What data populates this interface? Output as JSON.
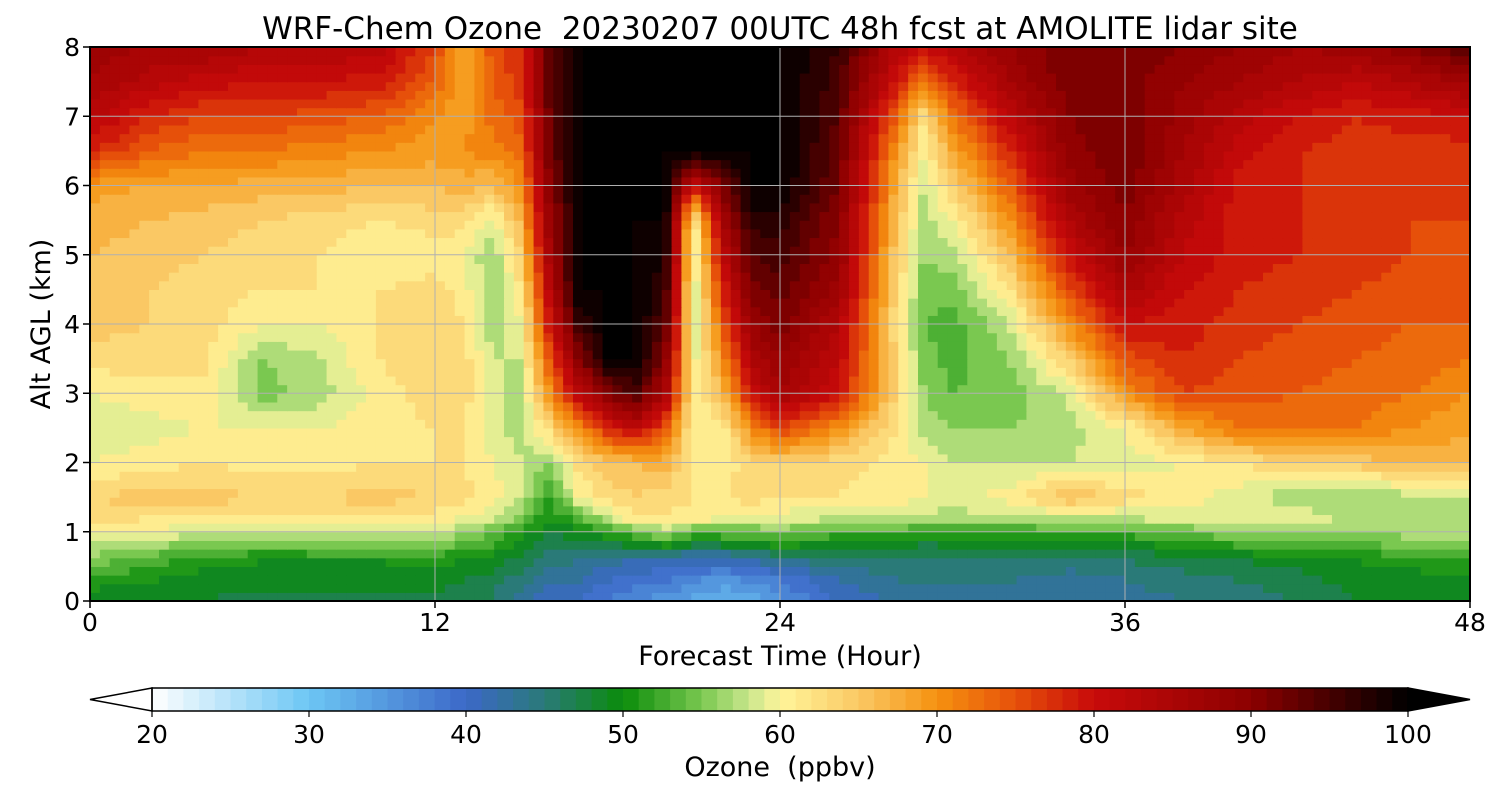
{
  "chart_data": {
    "type": "heatmap",
    "title": "WRF-Chem Ozone  20230207 00UTC 48h fcst at AMOLITE lidar site",
    "xlabel": "Forecast Time (Hour)",
    "ylabel": "Alt AGL (km)",
    "xlim": [
      0,
      48
    ],
    "ylim": [
      0,
      8
    ],
    "x_ticks": [
      0,
      12,
      24,
      36,
      48
    ],
    "y_ticks": [
      0,
      1,
      2,
      3,
      4,
      5,
      6,
      7,
      8
    ],
    "grid": true,
    "z_label": "Ozone  (ppbv)",
    "z_range": [
      20,
      100
    ],
    "colorbar_ticks": [
      20,
      30,
      40,
      50,
      60,
      70,
      80,
      90,
      100
    ],
    "colorbar_extend": "both",
    "colorbar_placement": "bottom",
    "colormap": [
      [
        20,
        "#ffffff"
      ],
      [
        30,
        "#6cc6f4"
      ],
      [
        40,
        "#3c68c8"
      ],
      [
        45,
        "#2a7a78"
      ],
      [
        50,
        "#0a8c0a"
      ],
      [
        55,
        "#7ac850"
      ],
      [
        58,
        "#c8e68c"
      ],
      [
        60,
        "#fff59a"
      ],
      [
        65,
        "#fac864"
      ],
      [
        70,
        "#f5920f"
      ],
      [
        75,
        "#e6500a"
      ],
      [
        80,
        "#c80a0a"
      ],
      [
        90,
        "#8c0000"
      ],
      [
        100,
        "#000000"
      ]
    ],
    "x": [
      0,
      2,
      4,
      6,
      8,
      10,
      12,
      13,
      14,
      15,
      16,
      17,
      18,
      19,
      20,
      21,
      22,
      23,
      24,
      26,
      28,
      29,
      30,
      32,
      34,
      36,
      38,
      40,
      42,
      44,
      46,
      48
    ],
    "y": [
      0,
      0.3,
      0.6,
      0.9,
      1.2,
      1.5,
      2.0,
      2.5,
      3.0,
      3.5,
      4.0,
      4.5,
      5.0,
      5.5,
      6.0,
      6.5,
      7.0,
      7.5,
      8.0
    ],
    "z": [
      [
        47,
        48,
        48,
        47,
        47,
        47,
        47,
        47,
        46,
        42,
        40,
        40,
        38,
        36,
        35,
        33,
        32,
        33,
        35,
        40,
        42,
        42,
        43,
        43,
        42,
        43,
        44,
        45,
        46,
        48,
        48,
        49
      ],
      [
        52,
        50,
        49,
        49,
        49,
        49,
        49,
        48,
        47,
        45,
        42,
        42,
        40,
        39,
        38,
        36,
        35,
        36,
        38,
        42,
        44,
        44,
        44,
        44,
        43,
        44,
        45,
        46,
        47,
        49,
        49,
        50
      ],
      [
        55,
        53,
        51,
        50,
        50,
        50,
        51,
        50,
        49,
        47,
        45,
        44,
        43,
        42,
        41,
        41,
        41,
        42,
        44,
        45,
        45,
        45,
        46,
        46,
        45,
        46,
        47,
        48,
        49,
        50,
        51,
        52
      ],
      [
        59,
        58,
        57,
        56,
        57,
        57,
        56,
        55,
        53,
        50,
        47,
        48,
        49,
        51,
        54,
        50,
        51,
        51,
        53,
        51,
        50,
        49,
        49,
        50,
        50,
        51,
        52,
        54,
        55,
        55,
        56,
        57
      ],
      [
        63,
        62,
        62,
        62,
        62,
        62,
        61,
        60,
        58,
        55,
        50,
        53,
        57,
        62,
        62,
        61,
        60,
        60,
        59,
        58,
        58,
        57,
        57,
        57,
        58,
        58,
        59,
        60,
        60,
        57,
        57,
        56
      ],
      [
        64,
        65,
        65,
        64,
        64,
        65,
        64,
        63,
        61,
        58,
        52,
        60,
        63,
        64,
        63,
        62,
        62,
        63,
        62,
        62,
        61,
        60,
        59,
        61,
        66,
        63,
        61,
        59,
        56,
        56,
        57,
        57
      ],
      [
        60,
        61,
        62,
        61,
        61,
        62,
        62,
        62,
        60,
        58,
        56,
        63,
        65,
        66,
        67,
        61,
        60,
        64,
        64,
        63,
        61,
        60,
        58,
        58,
        58,
        59,
        60,
        62,
        64,
        65,
        66,
        67
      ],
      [
        58,
        59,
        60,
        60,
        60,
        61,
        62,
        62,
        59,
        57,
        63,
        70,
        78,
        82,
        75,
        60,
        61,
        70,
        76,
        70,
        62,
        57,
        56,
        56,
        57,
        60,
        68,
        72,
        72,
        72,
        70,
        68
      ],
      [
        60,
        61,
        62,
        55,
        57,
        61,
        63,
        63,
        59,
        57,
        70,
        82,
        90,
        95,
        85,
        60,
        66,
        80,
        86,
        80,
        64,
        56,
        54,
        55,
        58,
        70,
        76,
        75,
        74,
        73,
        72,
        70
      ],
      [
        63,
        63,
        62,
        56,
        58,
        62,
        64,
        63,
        58,
        58,
        75,
        90,
        100,
        100,
        90,
        59,
        70,
        84,
        88,
        82,
        64,
        55,
        53,
        56,
        64,
        75,
        78,
        76,
        75,
        74,
        73,
        72
      ],
      [
        65,
        64,
        63,
        60,
        60,
        62,
        64,
        62,
        57,
        60,
        80,
        96,
        100,
        100,
        94,
        58,
        74,
        88,
        91,
        84,
        63,
        54,
        53,
        58,
        70,
        80,
        79,
        77,
        76,
        75,
        74,
        74
      ],
      [
        65,
        64,
        63,
        62,
        62,
        62,
        63,
        61,
        56,
        62,
        83,
        100,
        100,
        100,
        96,
        58,
        78,
        91,
        93,
        87,
        64,
        55,
        55,
        62,
        75,
        85,
        80,
        78,
        77,
        76,
        75,
        74
      ],
      [
        66,
        65,
        64,
        63,
        62,
        60,
        61,
        60,
        56,
        64,
        86,
        100,
        100,
        100,
        98,
        59,
        82,
        94,
        95,
        89,
        65,
        56,
        57,
        66,
        80,
        88,
        82,
        79,
        78,
        77,
        76,
        75
      ],
      [
        67,
        66,
        65,
        64,
        63,
        62,
        63,
        63,
        59,
        67,
        88,
        100,
        100,
        100,
        100,
        60,
        86,
        97,
        97,
        90,
        66,
        57,
        60,
        70,
        84,
        90,
        83,
        79,
        78,
        77,
        76,
        76
      ],
      [
        69,
        68,
        68,
        67,
        67,
        66,
        66,
        67,
        66,
        70,
        90,
        100,
        100,
        100,
        100,
        80,
        91,
        100,
        100,
        92,
        68,
        58,
        64,
        74,
        87,
        91,
        85,
        79,
        78,
        77,
        76,
        76
      ],
      [
        78,
        74,
        72,
        72,
        71,
        70,
        69,
        70,
        71,
        73,
        92,
        100,
        100,
        100,
        100,
        100,
        100,
        100,
        100,
        93,
        70,
        60,
        68,
        78,
        89,
        92,
        86,
        81,
        78,
        77,
        77,
        77
      ],
      [
        83,
        78,
        76,
        76,
        75,
        74,
        70,
        69,
        73,
        75,
        93,
        100,
        100,
        100,
        100,
        100,
        100,
        100,
        100,
        94,
        74,
        62,
        72,
        82,
        90,
        92,
        87,
        83,
        80,
        78,
        79,
        80
      ],
      [
        86,
        83,
        81,
        80,
        80,
        79,
        74,
        67,
        74,
        77,
        93,
        100,
        100,
        100,
        100,
        100,
        100,
        100,
        100,
        95,
        80,
        72,
        78,
        86,
        91,
        91,
        88,
        86,
        84,
        82,
        84,
        87
      ],
      [
        87,
        86,
        86,
        84,
        84,
        83,
        76,
        68,
        75,
        78,
        94,
        100,
        100,
        100,
        100,
        100,
        100,
        100,
        100,
        96,
        84,
        80,
        83,
        88,
        92,
        92,
        90,
        88,
        86,
        87,
        90,
        94
      ]
    ]
  }
}
